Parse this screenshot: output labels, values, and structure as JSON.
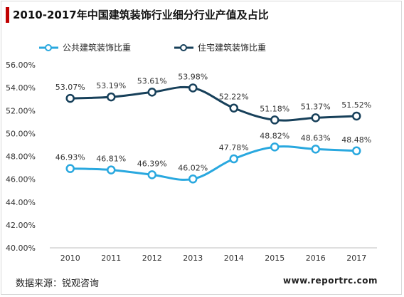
{
  "header": {
    "title": "2010-2017年中国建筑装饰行业细分行业产值及占比"
  },
  "footer": {
    "source": "数据来源：锐观咨询",
    "site": "www.reportrc.com"
  },
  "colors": {
    "accent": "#c00000",
    "public": "#29a8df",
    "residential": "#17405a"
  },
  "chart_data": {
    "type": "line",
    "title": "2010-2017年中国建筑装饰行业细分行业产值及占比",
    "xlabel": "",
    "ylabel": "",
    "categories": [
      "2010",
      "2011",
      "2012",
      "2013",
      "2014",
      "2015",
      "2016",
      "2017"
    ],
    "ylim": [
      40,
      56
    ],
    "yticks": [
      "40.00%",
      "42.00%",
      "44.00%",
      "46.00%",
      "48.00%",
      "50.00%",
      "52.00%",
      "54.00%",
      "56.00%"
    ],
    "grid": false,
    "legend": "top",
    "series": [
      {
        "name": "公共建筑装饰比重",
        "color": "#29a8df",
        "values": [
          46.93,
          46.81,
          46.39,
          46.02,
          47.78,
          48.82,
          48.63,
          48.48
        ],
        "labels": [
          "46.93%",
          "46.81%",
          "46.39%",
          "46.02%",
          "47.78%",
          "48.82%",
          "48.63%",
          "48.48%"
        ]
      },
      {
        "name": "住宅建筑装饰比重",
        "color": "#17405a",
        "values": [
          53.07,
          53.19,
          53.61,
          53.98,
          52.22,
          51.18,
          51.37,
          51.52
        ],
        "labels": [
          "53.07%",
          "53.19%",
          "53.61%",
          "53.98%",
          "52.22%",
          "51.18%",
          "51.37%",
          "51.52%"
        ]
      }
    ]
  }
}
